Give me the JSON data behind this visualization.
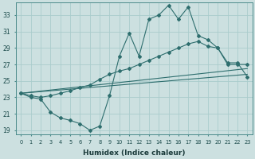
{
  "xlabel": "Humidex (Indice chaleur)",
  "ylabel": "",
  "background_color": "#cce0e0",
  "grid_color": "#aacccc",
  "line_color": "#2e6e6e",
  "xlim": [
    -0.5,
    23.5
  ],
  "ylim": [
    18.5,
    34.5
  ],
  "yticks": [
    19,
    21,
    23,
    25,
    27,
    29,
    31,
    33
  ],
  "xticks": [
    0,
    1,
    2,
    3,
    4,
    5,
    6,
    7,
    8,
    9,
    10,
    11,
    12,
    13,
    14,
    15,
    16,
    17,
    18,
    19,
    20,
    21,
    22,
    23
  ],
  "series_main_x": [
    0,
    1,
    2,
    3,
    4,
    5,
    6,
    7,
    8,
    9,
    10,
    11,
    12,
    13,
    14,
    15,
    16,
    17,
    18,
    19,
    20,
    21,
    22,
    23
  ],
  "series_main_y": [
    23.5,
    23.0,
    22.8,
    21.2,
    20.5,
    20.2,
    19.8,
    19.0,
    19.5,
    23.2,
    28.0,
    30.8,
    28.0,
    32.5,
    33.0,
    34.2,
    32.5,
    34.0,
    30.5,
    30.0,
    29.0,
    27.0,
    27.0,
    27.0
  ],
  "series_upper_x": [
    0,
    1,
    2,
    3,
    4,
    5,
    6,
    7,
    8,
    9,
    10,
    11,
    12,
    13,
    14,
    15,
    16,
    17,
    18,
    19,
    20,
    21,
    22,
    23
  ],
  "series_upper_y": [
    23.5,
    23.2,
    23.0,
    23.2,
    23.5,
    23.8,
    24.2,
    24.5,
    25.2,
    25.8,
    26.2,
    26.5,
    27.0,
    27.5,
    28.0,
    28.5,
    29.0,
    29.5,
    29.8,
    29.2,
    29.0,
    27.2,
    27.2,
    25.5
  ],
  "line1_x": [
    0,
    23
  ],
  "line1_y": [
    23.5,
    25.8
  ],
  "line2_x": [
    0,
    23
  ],
  "line2_y": [
    23.5,
    26.5
  ]
}
